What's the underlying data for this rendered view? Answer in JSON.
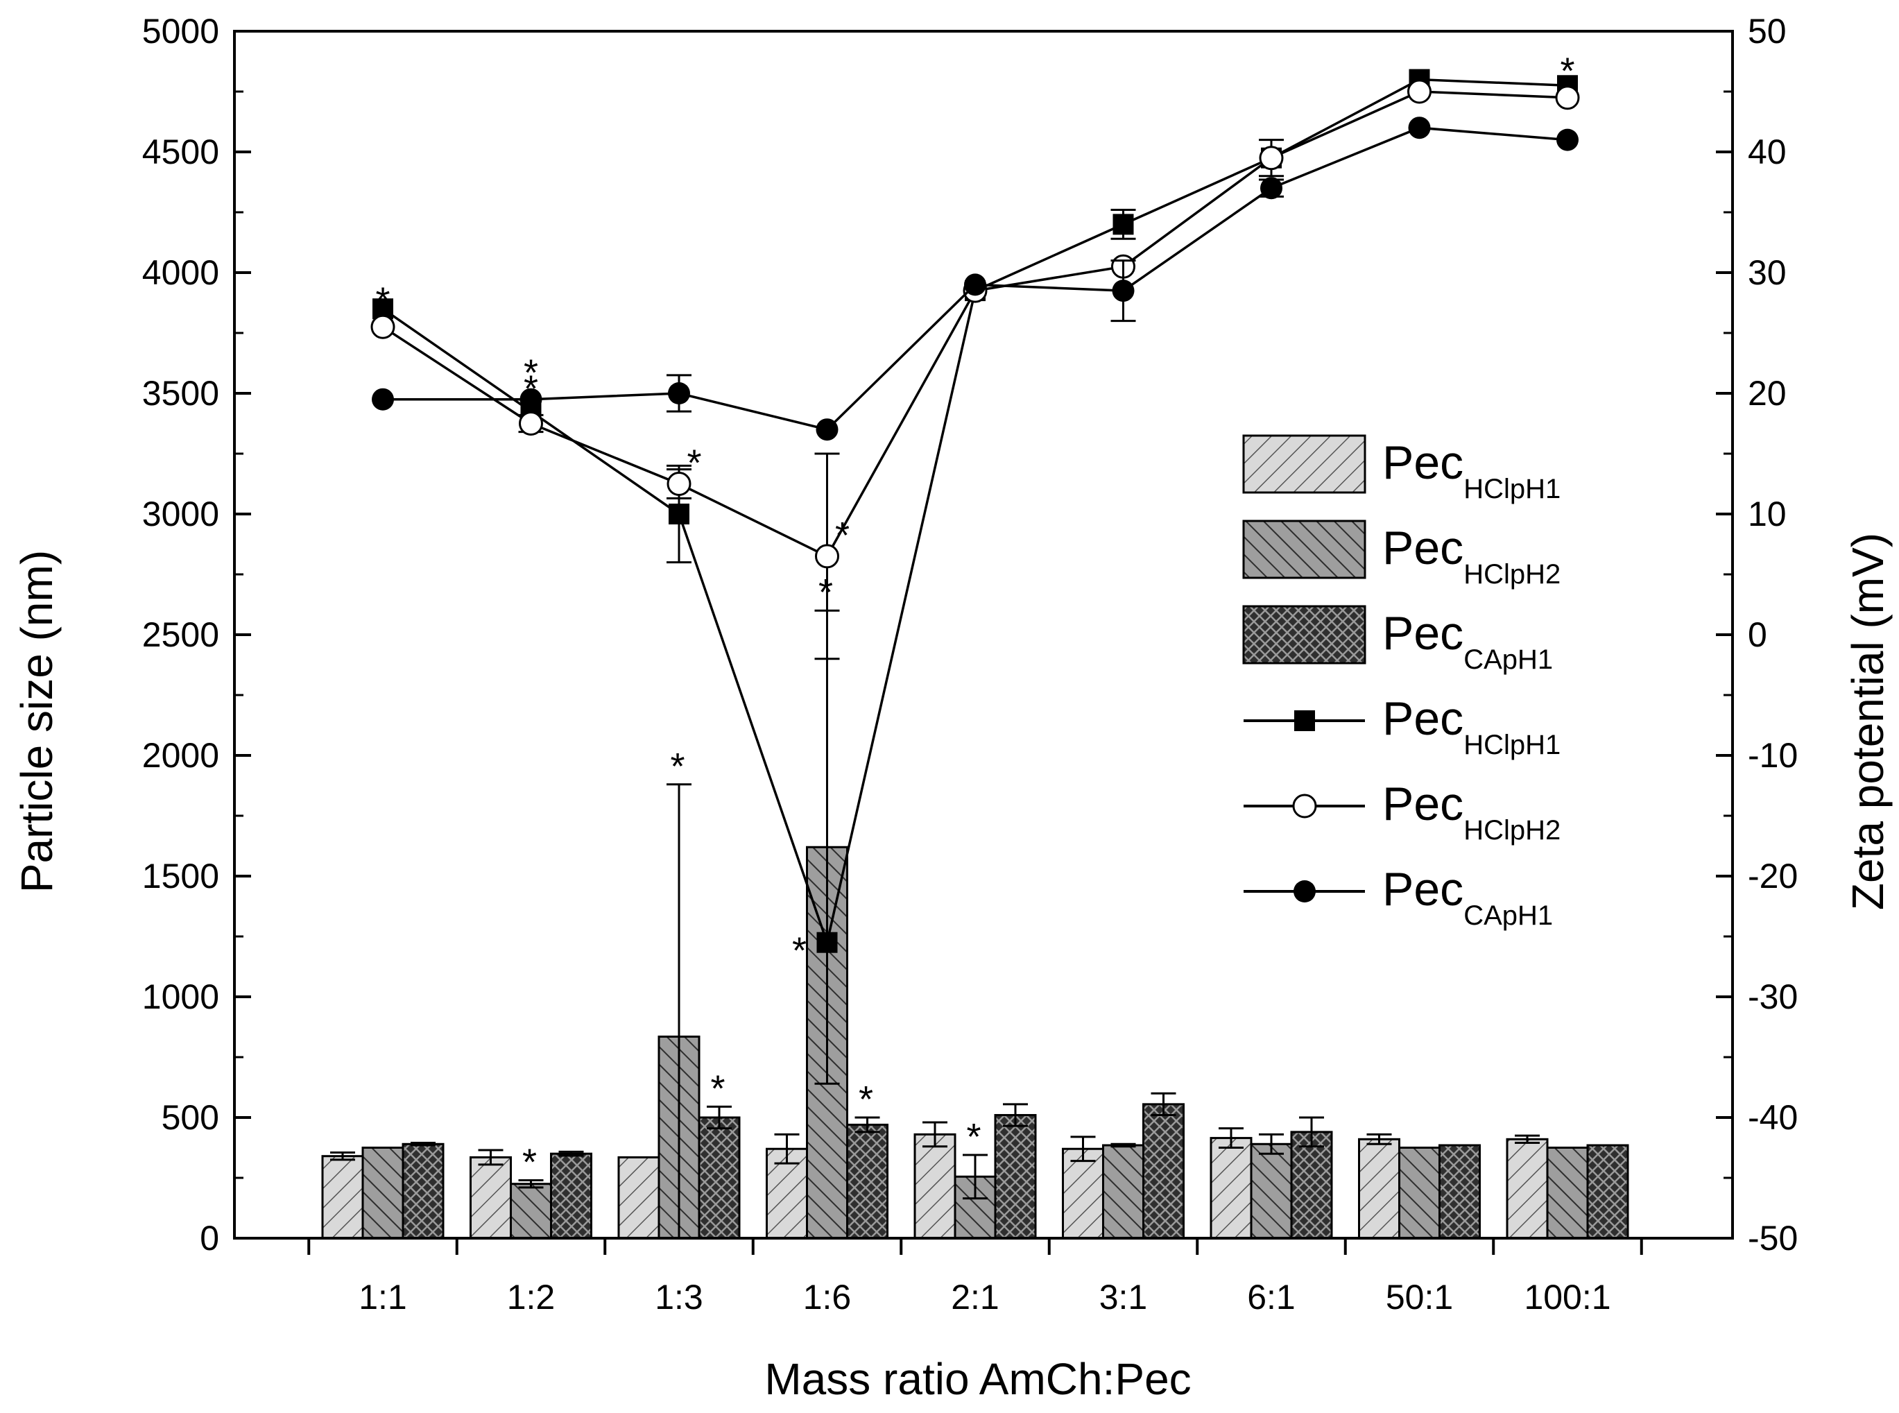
{
  "chart_data": {
    "type": "bar+line",
    "xlabel": "Mass ratio AmCh:Pec",
    "ylabel": "Particle size (nm)",
    "y2label": "Zeta potential (mV)",
    "categories": [
      "1:1",
      "1:2",
      "1:3",
      "1:6",
      "2:1",
      "3:1",
      "6:1",
      "50:1",
      "100:1"
    ],
    "ylim": [
      0,
      5000
    ],
    "y_ticks": [
      "0",
      "500",
      "1000",
      "1500",
      "2000",
      "2500",
      "3000",
      "3500",
      "4000",
      "4500",
      "5000"
    ],
    "y2lim": [
      -50,
      50
    ],
    "y2_ticks": [
      "-50",
      "-40",
      "-30",
      "-20",
      "-10",
      "0",
      "10",
      "20",
      "30",
      "40",
      "50"
    ],
    "bar_series": [
      {
        "name": "Pec",
        "sub": "HClpH1",
        "pattern": "light",
        "values": [
          340,
          335,
          335,
          370,
          430,
          370,
          415,
          410,
          410
        ],
        "errors": [
          15,
          30,
          0,
          60,
          50,
          50,
          40,
          20,
          15
        ],
        "stars": [
          false,
          false,
          false,
          false,
          false,
          false,
          false,
          false,
          false
        ]
      },
      {
        "name": "Pec",
        "sub": "HClpH2",
        "pattern": "medium",
        "values": [
          375,
          225,
          835,
          1620,
          255,
          385,
          390,
          375,
          375
        ],
        "errors": [
          0,
          15,
          1045,
          980,
          90,
          5,
          40,
          0,
          0
        ],
        "stars": [
          false,
          true,
          true,
          true,
          true,
          false,
          false,
          false,
          false
        ]
      },
      {
        "name": "Pec",
        "sub": "CApH1",
        "pattern": "dark",
        "values": [
          390,
          350,
          500,
          470,
          510,
          555,
          440,
          385,
          385
        ],
        "errors": [
          5,
          8,
          45,
          30,
          45,
          45,
          60,
          0,
          0
        ],
        "stars": [
          false,
          false,
          true,
          true,
          false,
          false,
          false,
          false,
          false
        ]
      }
    ],
    "line_series": [
      {
        "name": "Pec",
        "sub": "HClpH1",
        "marker": "filled-square",
        "values": [
          27,
          18.5,
          10,
          -25.5,
          28.5,
          34,
          39.5,
          46,
          45.5
        ],
        "errors": [
          0,
          0,
          4,
          0,
          0,
          1.2,
          0,
          0,
          0
        ],
        "stars": [
          false,
          false,
          false,
          true,
          false,
          false,
          false,
          false,
          false
        ]
      },
      {
        "name": "Pec",
        "sub": "HClpH2",
        "marker": "open-circle",
        "values": [
          25.5,
          17.5,
          12.5,
          6.5,
          28.5,
          30.5,
          39.5,
          45,
          44.5
        ],
        "errors": [
          0,
          0.7,
          1.2,
          8.5,
          0,
          0,
          1.5,
          0,
          0
        ],
        "stars": [
          true,
          true,
          true,
          true,
          false,
          false,
          false,
          false,
          true
        ]
      },
      {
        "name": "Pec",
        "sub": "CApH1",
        "marker": "filled-circle",
        "values": [
          19.5,
          19.5,
          20,
          17,
          29,
          28.5,
          37,
          42,
          41
        ],
        "errors": [
          0,
          0,
          1.5,
          0,
          0,
          2.5,
          0.7,
          0,
          0
        ],
        "stars": [
          false,
          true,
          false,
          false,
          false,
          false,
          false,
          false,
          false
        ]
      }
    ],
    "star_symbol": "*",
    "legend_position": "right-middle",
    "legend_order": [
      "bar:0",
      "bar:1",
      "bar:2",
      "line:0",
      "line:1",
      "line:2"
    ]
  }
}
